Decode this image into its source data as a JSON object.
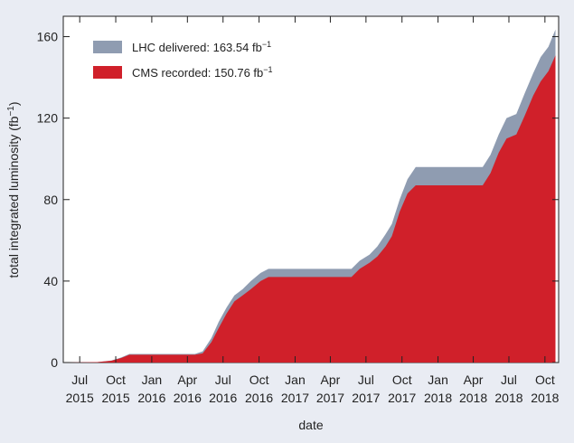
{
  "chart_data": {
    "type": "area",
    "xlabel": "date",
    "ylabel": "total integrated luminosity (fb",
    "ylabel_sup": "−1",
    "ylabel_close": ")",
    "xlim": [
      "2015-05-20",
      "2018-11-05"
    ],
    "ylim": [
      0,
      170
    ],
    "grid": false,
    "legend_position": "top-left",
    "y_ticks": [
      0,
      40,
      80,
      120,
      160
    ],
    "x_ticks": [
      {
        "date": "2015-07-01",
        "line1": "Jul",
        "line2": "2015"
      },
      {
        "date": "2015-10-01",
        "line1": "Oct",
        "line2": "2015"
      },
      {
        "date": "2016-01-01",
        "line1": "Jan",
        "line2": "2016"
      },
      {
        "date": "2016-04-01",
        "line1": "Apr",
        "line2": "2016"
      },
      {
        "date": "2016-07-01",
        "line1": "Jul",
        "line2": "2016"
      },
      {
        "date": "2016-10-01",
        "line1": "Oct",
        "line2": "2016"
      },
      {
        "date": "2017-01-01",
        "line1": "Jan",
        "line2": "2017"
      },
      {
        "date": "2017-04-01",
        "line1": "Apr",
        "line2": "2017"
      },
      {
        "date": "2017-07-01",
        "line1": "Jul",
        "line2": "2017"
      },
      {
        "date": "2017-10-01",
        "line1": "Oct",
        "line2": "2017"
      },
      {
        "date": "2018-01-01",
        "line1": "Jan",
        "line2": "2018"
      },
      {
        "date": "2018-04-01",
        "line1": "Apr",
        "line2": "2018"
      },
      {
        "date": "2018-07-01",
        "line1": "Jul",
        "line2": "2018"
      },
      {
        "date": "2018-10-01",
        "line1": "Oct",
        "line2": "2018"
      }
    ],
    "series": [
      {
        "name": "LHC delivered: 163.54 fb",
        "name_sup": "−1",
        "color": "#8f9cb1",
        "points": [
          [
            "2015-06-01",
            0
          ],
          [
            "2015-08-15",
            0.2
          ],
          [
            "2015-09-20",
            1.0
          ],
          [
            "2015-10-15",
            2.5
          ],
          [
            "2015-11-05",
            4.2
          ],
          [
            "2016-04-20",
            4.2
          ],
          [
            "2016-05-10",
            5.5
          ],
          [
            "2016-06-01",
            12
          ],
          [
            "2016-06-20",
            20
          ],
          [
            "2016-07-10",
            27
          ],
          [
            "2016-07-30",
            33
          ],
          [
            "2016-08-20",
            36
          ],
          [
            "2016-09-10",
            40
          ],
          [
            "2016-10-05",
            44
          ],
          [
            "2016-10-25",
            46
          ],
          [
            "2017-05-25",
            46
          ],
          [
            "2017-06-15",
            50
          ],
          [
            "2017-07-10",
            53
          ],
          [
            "2017-07-30",
            57
          ],
          [
            "2017-08-20",
            63
          ],
          [
            "2017-09-05",
            68
          ],
          [
            "2017-09-25",
            80
          ],
          [
            "2017-10-15",
            90
          ],
          [
            "2017-11-05",
            96
          ],
          [
            "2018-04-25",
            96
          ],
          [
            "2018-05-15",
            102
          ],
          [
            "2018-06-05",
            112
          ],
          [
            "2018-06-25",
            120
          ],
          [
            "2018-07-20",
            122
          ],
          [
            "2018-08-10",
            132
          ],
          [
            "2018-09-01",
            142
          ],
          [
            "2018-09-20",
            150
          ],
          [
            "2018-10-10",
            155
          ],
          [
            "2018-10-28",
            163.54
          ]
        ]
      },
      {
        "name": "CMS recorded: 150.76 fb",
        "name_sup": "−1",
        "color": "#d0202a",
        "points": [
          [
            "2015-06-01",
            0
          ],
          [
            "2015-08-15",
            0.2
          ],
          [
            "2015-09-20",
            0.9
          ],
          [
            "2015-10-15",
            2.2
          ],
          [
            "2015-11-05",
            3.8
          ],
          [
            "2016-04-20",
            3.8
          ],
          [
            "2016-05-10",
            4.5
          ],
          [
            "2016-06-01",
            10
          ],
          [
            "2016-06-20",
            17
          ],
          [
            "2016-07-10",
            24
          ],
          [
            "2016-07-30",
            30
          ],
          [
            "2016-08-20",
            33
          ],
          [
            "2016-09-10",
            36
          ],
          [
            "2016-10-05",
            40
          ],
          [
            "2016-10-25",
            42
          ],
          [
            "2017-05-25",
            42
          ],
          [
            "2017-06-15",
            46
          ],
          [
            "2017-07-10",
            49
          ],
          [
            "2017-07-30",
            52
          ],
          [
            "2017-08-20",
            57
          ],
          [
            "2017-09-05",
            62
          ],
          [
            "2017-09-25",
            74
          ],
          [
            "2017-10-15",
            83
          ],
          [
            "2017-11-05",
            87
          ],
          [
            "2018-04-25",
            87
          ],
          [
            "2018-05-15",
            93
          ],
          [
            "2018-06-05",
            103
          ],
          [
            "2018-06-25",
            110
          ],
          [
            "2018-07-20",
            112
          ],
          [
            "2018-08-10",
            121
          ],
          [
            "2018-09-01",
            131
          ],
          [
            "2018-09-20",
            138
          ],
          [
            "2018-10-10",
            143
          ],
          [
            "2018-10-28",
            150.76
          ]
        ]
      }
    ]
  }
}
